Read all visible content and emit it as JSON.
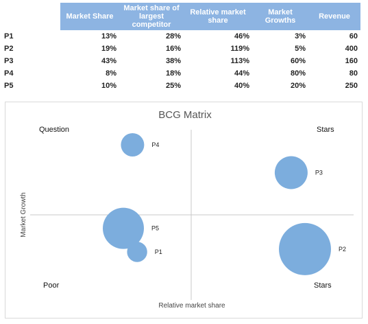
{
  "table": {
    "headers": [
      "Market Share",
      "Market share of largest competitor",
      "Relative market share",
      "Market Growths",
      "Revenue"
    ],
    "rows": [
      {
        "label": "P1",
        "cells": [
          "13%",
          "28%",
          "46%",
          "3%",
          "60"
        ]
      },
      {
        "label": "P2",
        "cells": [
          "19%",
          "16%",
          "119%",
          "5%",
          "400"
        ]
      },
      {
        "label": "P3",
        "cells": [
          "43%",
          "38%",
          "113%",
          "60%",
          "160"
        ]
      },
      {
        "label": "P4",
        "cells": [
          "8%",
          "18%",
          "44%",
          "80%",
          "80"
        ]
      },
      {
        "label": "P5",
        "cells": [
          "10%",
          "25%",
          "40%",
          "20%",
          "250"
        ]
      }
    ]
  },
  "chart_data": {
    "type": "scatter",
    "title": "BCG Matrix",
    "xlabel": "Relative market share",
    "ylabel": "Market Growth",
    "quadrants": {
      "top_left": "Question",
      "top_right": "Stars",
      "bottom_left": "Poor",
      "bottom_right": "Stars"
    },
    "bubble_color": "#7caddd",
    "points": [
      {
        "label": "P1",
        "x": 46,
        "y": 3,
        "size": 60
      },
      {
        "label": "P2",
        "x": 119,
        "y": 5,
        "size": 400
      },
      {
        "label": "P3",
        "x": 113,
        "y": 60,
        "size": 160
      },
      {
        "label": "P4",
        "x": 44,
        "y": 80,
        "size": 80
      },
      {
        "label": "P5",
        "x": 40,
        "y": 20,
        "size": 250
      }
    ]
  }
}
